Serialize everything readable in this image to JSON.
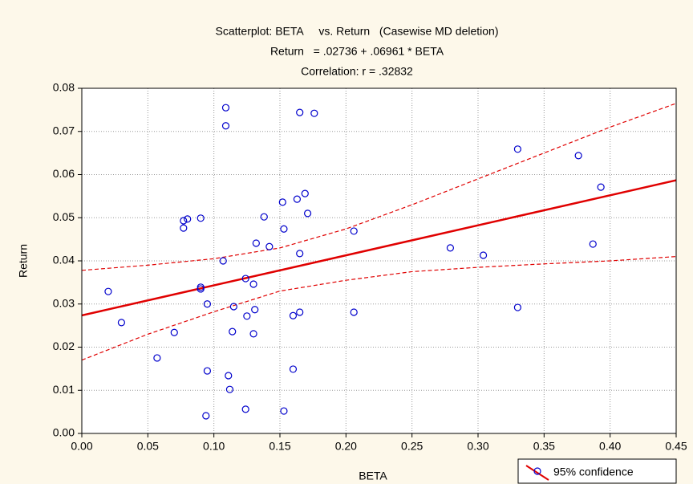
{
  "chart_data": {
    "type": "scatter",
    "title": "Scatterplot: BETA     vs. Return   (Casewise MD deletion)",
    "subtitle": "Return   = .02736 + .06961 * BETA",
    "annotation": "Correlation: r = .32832",
    "x_label": "BETA",
    "y_label": "Return",
    "legend": "95% confidence",
    "series": [
      {
        "color": "#0000cc",
        "x": [
          0.02,
          0.03,
          0.057,
          0.07,
          0.077,
          0.077,
          0.08,
          0.09,
          0.09,
          0.09,
          0.095,
          0.095,
          0.094,
          0.107,
          0.109,
          0.109,
          0.111,
          0.112,
          0.115,
          0.114,
          0.124,
          0.125,
          0.124,
          0.13,
          0.131,
          0.132,
          0.13,
          0.138,
          0.142,
          0.152,
          0.153,
          0.153,
          0.16,
          0.16,
          0.163,
          0.165,
          0.165,
          0.165,
          0.169,
          0.171,
          0.176,
          0.206,
          0.206,
          0.279,
          0.304,
          0.33,
          0.33,
          0.376,
          0.393,
          0.387
        ],
        "values": [
          0.0329,
          0.0257,
          0.0175,
          0.0234,
          0.0493,
          0.0476,
          0.0497,
          0.0499,
          0.0339,
          0.0335,
          0.03,
          0.0145,
          0.0041,
          0.04,
          0.0755,
          0.0713,
          0.0134,
          0.0102,
          0.0294,
          0.0236,
          0.0359,
          0.0272,
          0.0056,
          0.0346,
          0.0287,
          0.0441,
          0.0231,
          0.0502,
          0.0433,
          0.0536,
          0.0474,
          0.0052,
          0.0149,
          0.0273,
          0.0543,
          0.0744,
          0.0417,
          0.0281,
          0.0556,
          0.051,
          0.0742,
          0.0469,
          0.0281,
          0.043,
          0.0413,
          0.0659,
          0.0292,
          0.0644,
          0.0571,
          0.0439
        ]
      }
    ],
    "fit": {
      "intercept": 0.02736,
      "slope": 0.06961,
      "color": "#e00000"
    },
    "bands": {
      "color": "#e00000",
      "x": [
        0,
        0.05,
        0.1,
        0.15,
        0.2,
        0.25,
        0.3,
        0.35,
        0.4,
        0.45
      ],
      "upper": [
        0.0378,
        0.039,
        0.0405,
        0.043,
        0.0474,
        0.053,
        0.059,
        0.065,
        0.071,
        0.0765
      ],
      "lower": [
        0.017,
        0.023,
        0.0282,
        0.033,
        0.0355,
        0.0375,
        0.0385,
        0.0393,
        0.04,
        0.041
      ]
    },
    "xlim": [
      0,
      0.45
    ],
    "ylim": [
      0,
      0.08
    ],
    "xticks": [
      {
        "value": 0,
        "label": "0.00"
      },
      {
        "value": 0.05,
        "label": "0.05"
      },
      {
        "value": 0.1,
        "label": "0.10"
      },
      {
        "value": 0.15,
        "label": "0.15"
      },
      {
        "value": 0.2,
        "label": "0.20"
      },
      {
        "value": 0.25,
        "label": "0.25"
      },
      {
        "value": 0.3,
        "label": "0.30"
      },
      {
        "value": 0.35,
        "label": "0.35"
      },
      {
        "value": 0.4,
        "label": "0.40"
      },
      {
        "value": 0.45,
        "label": "0.45"
      }
    ],
    "yticks": [
      {
        "value": 0,
        "label": "0.00"
      },
      {
        "value": 0.01,
        "label": "0.01"
      },
      {
        "value": 0.02,
        "label": "0.02"
      },
      {
        "value": 0.03,
        "label": "0.03"
      },
      {
        "value": 0.04,
        "label": "0.04"
      },
      {
        "value": 0.05,
        "label": "0.05"
      },
      {
        "value": 0.06,
        "label": "0.06"
      },
      {
        "value": 0.07,
        "label": "0.07"
      },
      {
        "value": 0.08,
        "label": "0.08"
      }
    ],
    "grid": true
  }
}
